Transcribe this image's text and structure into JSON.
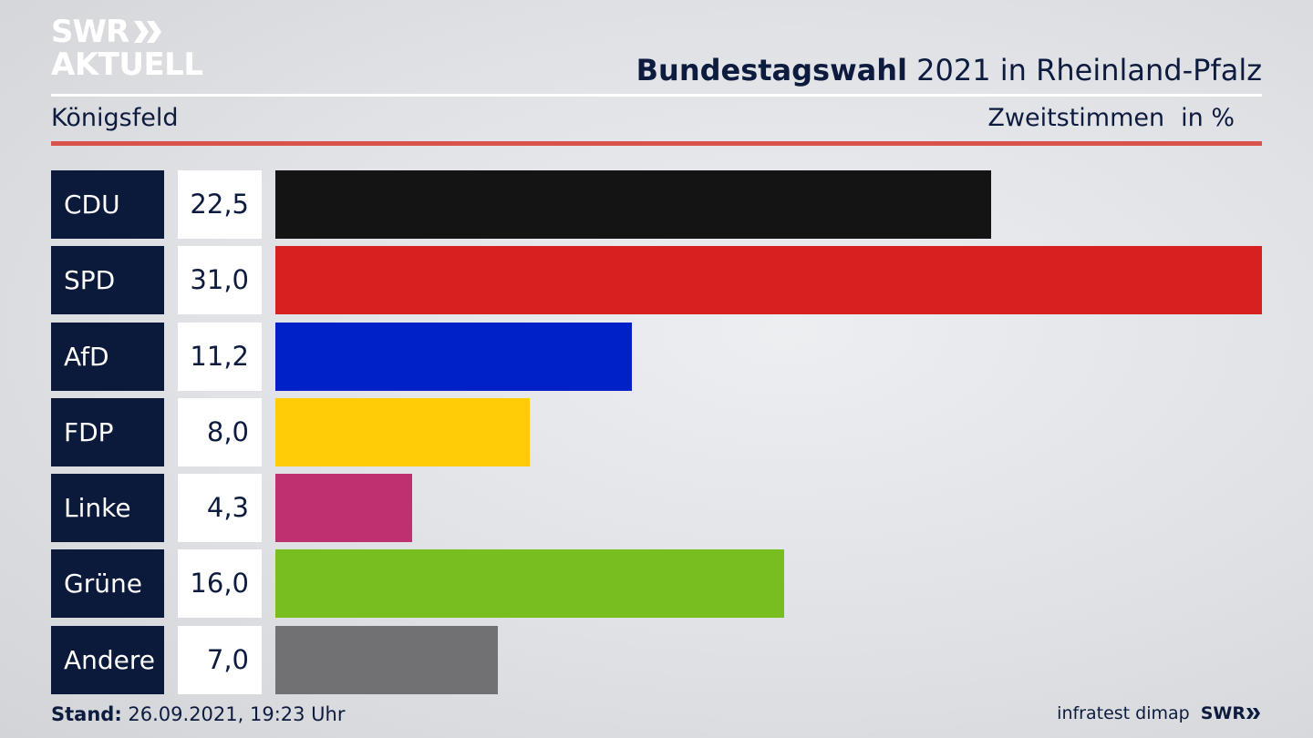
{
  "logo": {
    "line1": "SWR",
    "line2": "AKTUELL"
  },
  "header": {
    "title_bold": "Bundestagswahl",
    "title_rest": " 2021 in Rheinland-Pfalz",
    "location": "Königsfeld",
    "metric": "Zweitstimmen",
    "unit": "in %"
  },
  "colors": {
    "navy": "#0b1a3a",
    "accent_red_rule": "#d9534a"
  },
  "chart_data": {
    "type": "bar",
    "orientation": "horizontal",
    "categories": [
      "CDU",
      "SPD",
      "AfD",
      "FDP",
      "Linke",
      "Grüne",
      "Andere"
    ],
    "values": [
      22.5,
      31.0,
      11.2,
      8.0,
      4.3,
      16.0,
      7.0
    ],
    "value_labels": [
      "22,5",
      "31,0",
      "11,2",
      "8,0",
      "4,3",
      "16,0",
      "7,0"
    ],
    "colors": [
      "#141414",
      "#d92020",
      "#0020c8",
      "#ffcc07",
      "#bf3070",
      "#78be1e",
      "#717173"
    ],
    "xlim": [
      0,
      31.0
    ],
    "grid": false
  },
  "footer": {
    "stand_label": "Stand:",
    "stand_value": " 26.09.2021, 19:23 Uhr",
    "source": "infratest dimap",
    "brand": "SWR"
  }
}
